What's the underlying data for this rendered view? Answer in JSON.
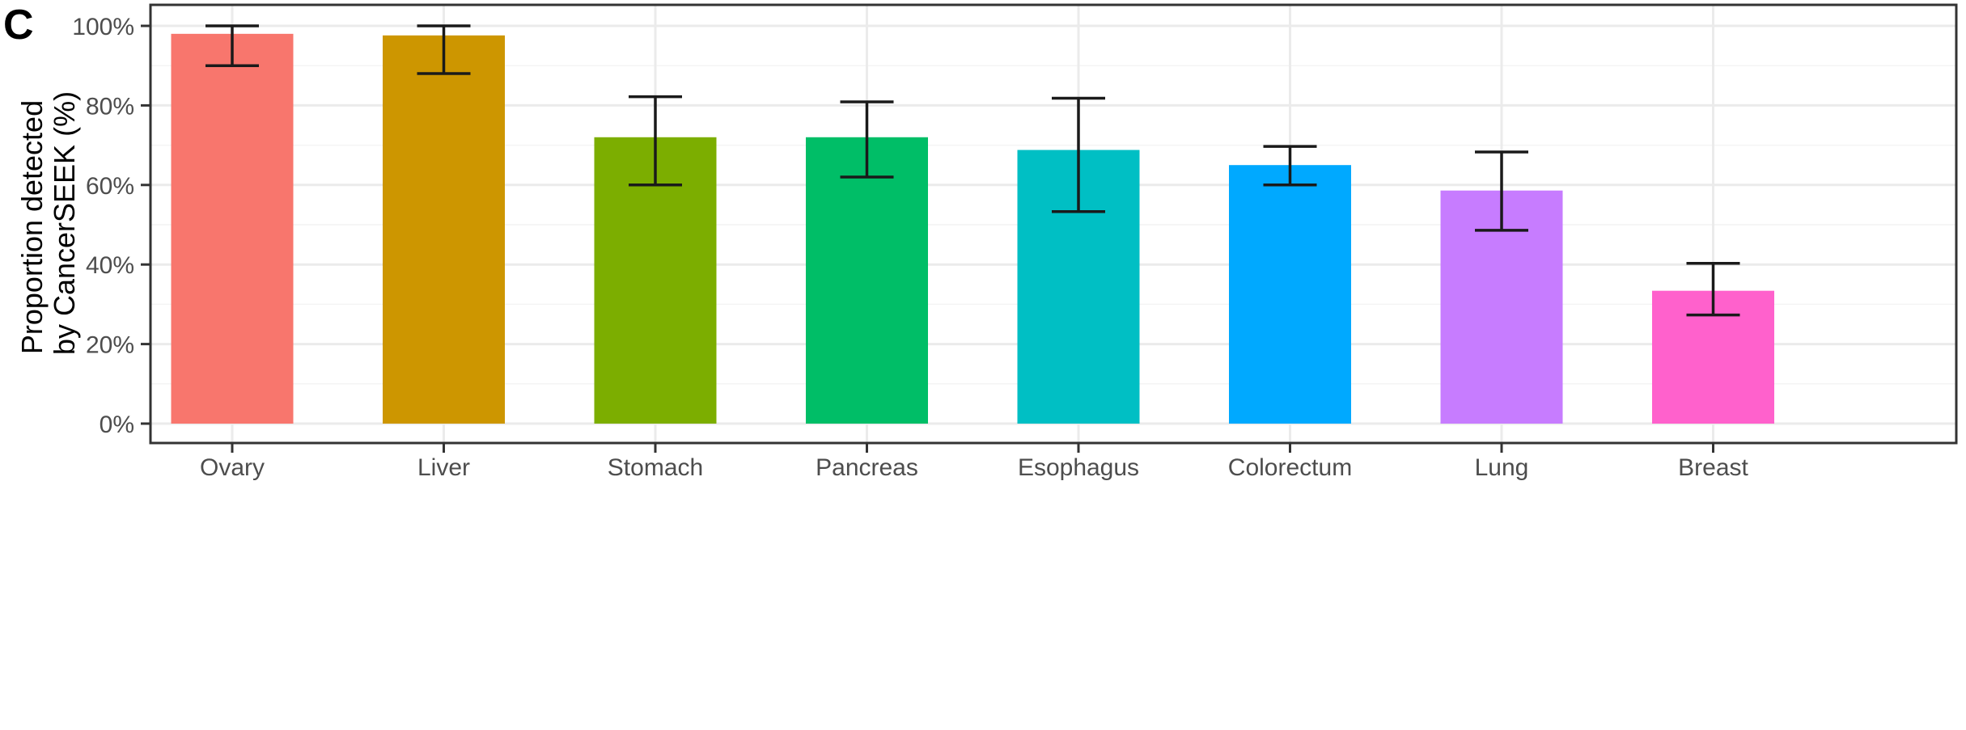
{
  "panel_label": "C",
  "chart_data": {
    "type": "bar",
    "title": "",
    "xlabel": "",
    "ylabel_lines": [
      "Proportion detected",
      "by CancerSEEK (%)"
    ],
    "ylim": [
      0,
      100
    ],
    "yticks": [
      0,
      20,
      40,
      60,
      80,
      100
    ],
    "ytick_labels": [
      "0%",
      "20%",
      "40%",
      "60%",
      "80%",
      "100%"
    ],
    "grid": true,
    "categories": [
      "Ovary",
      "Liver",
      "Stomach",
      "Pancreas",
      "Esophagus",
      "Colorectum",
      "Lung",
      "Breast"
    ],
    "values": [
      98,
      97.6,
      72,
      72,
      68.8,
      65,
      58.6,
      33.4
    ],
    "error_low": [
      90,
      88,
      60,
      62,
      53.3,
      60,
      48.6,
      27.3
    ],
    "error_high": [
      100,
      100,
      82.2,
      80.9,
      81.8,
      69.7,
      68.3,
      40.3
    ],
    "colors": [
      "#F8766D",
      "#CD9600",
      "#7CAE00",
      "#00BE67",
      "#00BFC4",
      "#00A9FF",
      "#C77CFF",
      "#FF61CC"
    ]
  }
}
